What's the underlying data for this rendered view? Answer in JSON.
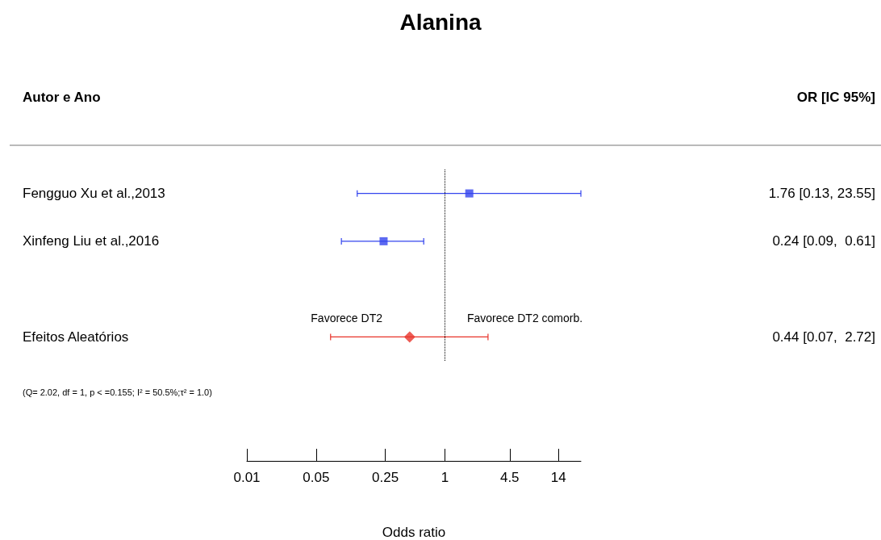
{
  "chart_data": {
    "type": "scatter",
    "title": "Alanina",
    "xlabel": "Odds ratio",
    "orientation": "horizontal",
    "categories": [
      "Fengguo Xu et al.,2013",
      "Xinfeng Liu et al.,2016",
      null,
      "Efeitos Aleatórios"
    ],
    "series": [
      {
        "color": "#3344ee",
        "marker": "square",
        "values": [
          1.76,
          0.24,
          null,
          null
        ],
        "errors": [
          [
            0.13,
            23.55
          ],
          [
            0.09,
            0.61
          ],
          null,
          null
        ]
      },
      {
        "color": "#e8332a",
        "marker": "diamond",
        "values": [
          null,
          null,
          null,
          0.44
        ],
        "errors": [
          null,
          null,
          null,
          [
            0.07,
            2.72
          ]
        ]
      }
    ],
    "value_labels": [
      "1.76 [0.13, 23.55]",
      "0.24 [0.09,  0.61]",
      null,
      "0.44 [0.07,  2.72]"
    ],
    "log": "x",
    "xlim": [
      0.01,
      23.55
    ],
    "xticks": [
      0.01,
      0.05,
      0.25,
      1,
      4.5,
      14
    ],
    "ref_lines": [
      {
        "axis": "x",
        "value": 1,
        "color": "#000000",
        "line_style": "dotted"
      }
    ],
    "annotations": [
      "Autor e Ano",
      "OR [IC 95%]",
      "Favorece DT2",
      "Favorece DT2 comorb.",
      "(Q= 2.02, df = 1, p < =0.155; I² = 50.5%;τ² = 1.0)"
    ],
    "grid": false
  }
}
